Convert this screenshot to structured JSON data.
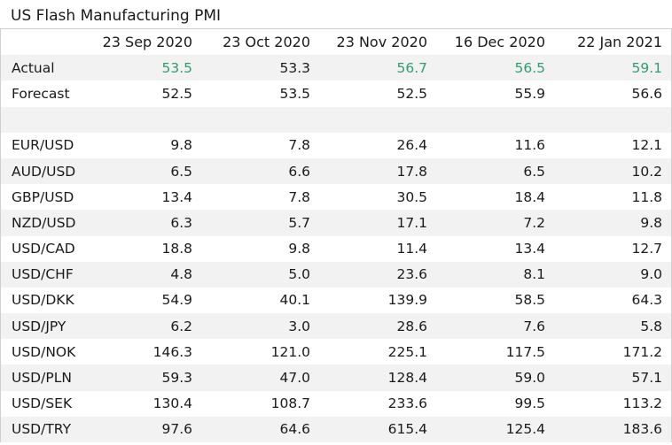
{
  "title": "US Flash Manufacturing PMI",
  "columns": [
    "",
    "23 Sep 2020",
    "23 Oct 2020",
    "23 Nov 2020",
    "16 Dec 2020",
    "22 Jan 2021"
  ],
  "actual": {
    "label": "Actual",
    "values": [
      "53.5",
      "53.3",
      "56.7",
      "56.5",
      "59.1"
    ],
    "highlight": [
      true,
      false,
      true,
      true,
      true
    ],
    "highlight_color": "#2e9e6e"
  },
  "forecast": {
    "label": "Forecast",
    "values": [
      "52.5",
      "53.5",
      "52.5",
      "55.9",
      "56.6"
    ]
  },
  "pairs": [
    {
      "label": "EUR/USD",
      "values": [
        "9.8",
        "7.8",
        "26.4",
        "11.6",
        "12.1"
      ]
    },
    {
      "label": "AUD/USD",
      "values": [
        "6.5",
        "6.6",
        "17.8",
        "6.5",
        "10.2"
      ]
    },
    {
      "label": "GBP/USD",
      "values": [
        "13.4",
        "7.8",
        "30.5",
        "18.4",
        "11.8"
      ]
    },
    {
      "label": "NZD/USD",
      "values": [
        "6.3",
        "5.7",
        "17.1",
        "7.2",
        "9.8"
      ]
    },
    {
      "label": "USD/CAD",
      "values": [
        "18.8",
        "9.8",
        "11.4",
        "13.4",
        "12.7"
      ]
    },
    {
      "label": "USD/CHF",
      "values": [
        "4.8",
        "5.0",
        "23.6",
        "8.1",
        "9.0"
      ]
    },
    {
      "label": "USD/DKK",
      "values": [
        "54.9",
        "40.1",
        "139.9",
        "58.5",
        "64.3"
      ]
    },
    {
      "label": "USD/JPY",
      "values": [
        "6.2",
        "3.0",
        "28.6",
        "7.6",
        "5.8"
      ]
    },
    {
      "label": "USD/NOK",
      "values": [
        "146.3",
        "121.0",
        "225.1",
        "117.5",
        "171.2"
      ]
    },
    {
      "label": "USD/PLN",
      "values": [
        "59.3",
        "47.0",
        "128.4",
        "59.0",
        "57.1"
      ]
    },
    {
      "label": "USD/SEK",
      "values": [
        "130.4",
        "108.7",
        "233.6",
        "99.5",
        "113.2"
      ]
    },
    {
      "label": "USD/TRY",
      "values": [
        "97.6",
        "64.6",
        "615.4",
        "125.4",
        "183.6"
      ]
    }
  ]
}
